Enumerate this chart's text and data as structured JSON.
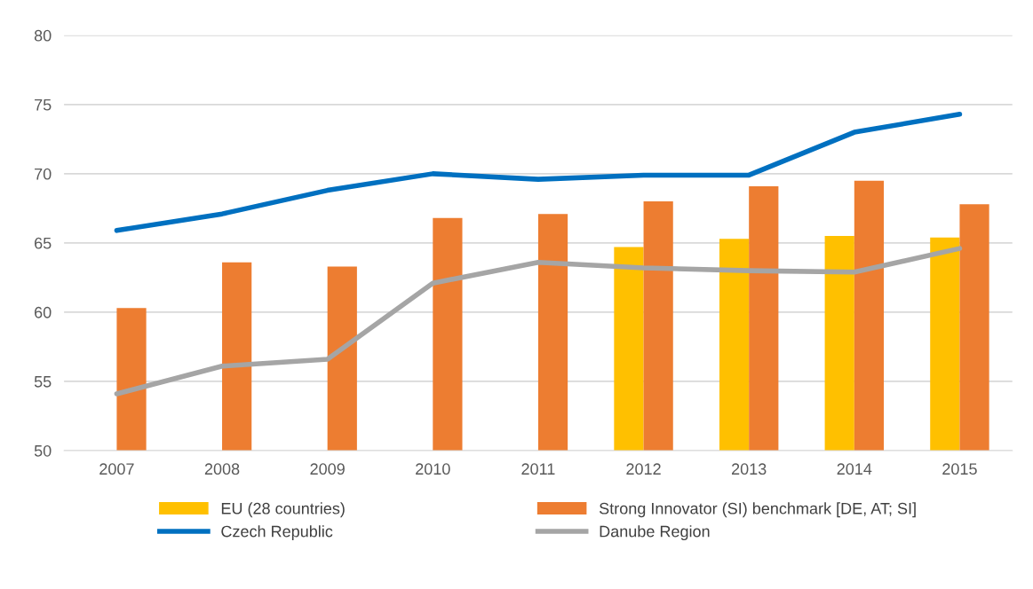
{
  "chart_data": {
    "type": "bar",
    "categories": [
      "2007",
      "2008",
      "2009",
      "2010",
      "2011",
      "2012",
      "2013",
      "2014",
      "2015"
    ],
    "series": [
      {
        "name": "EU (28 countries)",
        "color": "#ffc000",
        "values": [
          null,
          null,
          null,
          null,
          null,
          64.7,
          65.3,
          65.5,
          65.4
        ]
      },
      {
        "name": "Strong Innovator (SI) benchmark [DE, AT; SI]",
        "color": "#ed7d31",
        "values": [
          60.3,
          63.6,
          63.3,
          66.8,
          67.1,
          68.0,
          69.1,
          69.5,
          67.8
        ]
      },
      {
        "name": "Czech Republic",
        "type": "line",
        "color": "#0070c0",
        "values": [
          65.9,
          67.1,
          68.8,
          70.0,
          69.6,
          69.9,
          69.9,
          73.0,
          74.3
        ]
      },
      {
        "name": "Danube Region",
        "type": "line",
        "color": "#a5a5a5",
        "values": [
          54.1,
          56.1,
          56.6,
          62.1,
          63.6,
          63.2,
          63.0,
          62.9,
          64.6
        ]
      }
    ],
    "ylim": [
      50,
      80
    ],
    "yticks": [
      50,
      55,
      60,
      65,
      70,
      75,
      80
    ],
    "grid": "y",
    "legend": "bottom",
    "marker": "none",
    "line_style": "solid"
  }
}
